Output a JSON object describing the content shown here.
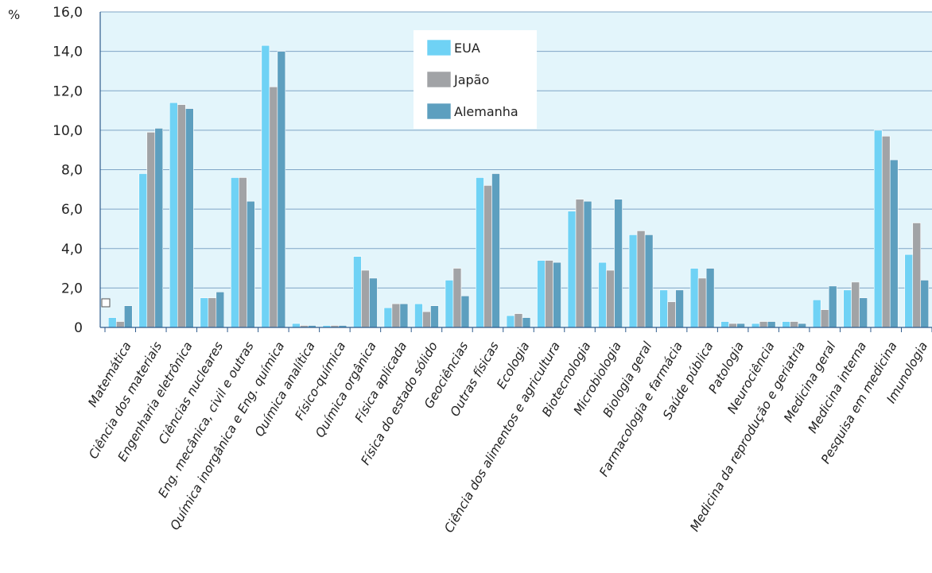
{
  "chart_data": {
    "type": "bar",
    "y_unit_label": "%",
    "ylim": [
      0,
      16
    ],
    "yticks": [
      "0",
      "2,0",
      "4,0",
      "6,0",
      "8,0",
      "10,0",
      "12,0",
      "14,0",
      "16,0"
    ],
    "grid": true,
    "legend_position": "top-center",
    "categories": [
      "Matemática",
      "Ciência dos materiais",
      "Engenharia eletrônica",
      "Ciências nucleares",
      "Eng. mecânica, civil e outras",
      "Química inorgânica e Eng. química",
      "Química analítica",
      "Físico-química",
      "Química orgânica",
      "Física aplicada",
      "Física do estado sólido",
      "Geociências",
      "Outras físicas",
      "Ecologia",
      "Ciência dos alimentos e agricultura",
      "Biotecnologia",
      "Microbiologia",
      "Biologia geral",
      "Farmacologia e farmácia",
      "Saúde pública",
      "Patologia",
      "Neurociência",
      "Medicina da reprodução e geriatria",
      "Medicina geral",
      "Medicina interna",
      "Pesquisa em medicina",
      "Imunologia"
    ],
    "series": [
      {
        "name": "EUA",
        "color": "#6fd2f5",
        "values": [
          0.5,
          7.8,
          11.4,
          1.5,
          7.6,
          14.3,
          0.2,
          0.1,
          3.6,
          1.0,
          1.2,
          2.4,
          7.6,
          0.6,
          3.4,
          5.9,
          3.3,
          4.7,
          1.9,
          3.0,
          0.3,
          0.2,
          0.3,
          1.4,
          1.9,
          10.0,
          3.7
        ]
      },
      {
        "name": "Japão",
        "color": "#a1a3a6",
        "values": [
          0.3,
          9.9,
          11.3,
          1.5,
          7.6,
          12.2,
          0.1,
          0.1,
          2.9,
          1.2,
          0.8,
          3.0,
          7.2,
          0.7,
          3.4,
          6.5,
          2.9,
          4.9,
          1.3,
          2.5,
          0.2,
          0.3,
          0.3,
          0.9,
          2.3,
          9.7,
          5.3
        ]
      },
      {
        "name": "Alemanha",
        "color": "#5d9fbf",
        "values": [
          1.1,
          10.1,
          11.1,
          1.8,
          6.4,
          14.0,
          0.1,
          0.1,
          2.5,
          1.2,
          1.1,
          1.6,
          7.8,
          0.5,
          3.3,
          6.4,
          6.5,
          4.7,
          1.9,
          3.0,
          0.2,
          0.3,
          0.2,
          2.1,
          1.5,
          8.5,
          2.4
        ]
      }
    ]
  },
  "colors": {
    "plot_background": "#e3f5fb",
    "grid": "#7fa5c6",
    "axis": "#2d5a8c"
  }
}
